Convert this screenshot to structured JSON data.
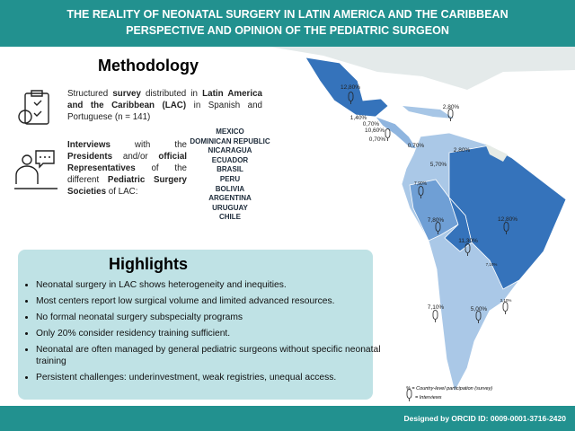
{
  "header": {
    "title_line1": "THE REALITY OF NEONATAL SURGERY IN LATIN AMERICA AND THE CARIBBEAN",
    "title_line2": "PERSPECTIVE AND OPINION OF THE PEDIATRIC SURGEON"
  },
  "methodology": {
    "title": "Methodology",
    "survey": [
      "Structured ",
      "survey",
      " distributed in ",
      "Latin America and the Caribbean (LAC)",
      " in Spanish and Portuguese (n = 141)"
    ],
    "interviews": [
      "Interviews",
      " with the ",
      "Presidents",
      " and/or ",
      "official Representatives",
      " of the different ",
      "Pediatric Surgery Societies",
      " of LAC:"
    ],
    "countries": [
      "MEXICO",
      "DOMINICAN REPUBLIC",
      "NICARAGUA",
      "ECUADOR",
      "BRASIL",
      "PERU",
      "BOLIVIA",
      "ARGENTINA",
      "URUGUAY",
      "CHILE"
    ]
  },
  "highlights": {
    "title": "Highlights",
    "items": [
      "Neonatal surgery in LAC shows heterogeneity and inequities.",
      "Most centers report low surgical volume and limited advanced resources.",
      "No formal neonatal surgery subspecialty programs",
      "Only 20% consider residency training sufficient.",
      "Neonatal are often managed by general pediatric surgeons without specific neonatal training",
      "Persistent challenges: underinvestment, weak registries, unequal access."
    ]
  },
  "map": {
    "labels": [
      "12,80%",
      "2,80%",
      "1,40%",
      "0,70%",
      "10,60%",
      "0,70%",
      "0,70%",
      "2,80%",
      "5,70%",
      "7,90%",
      "7,80%",
      "12,80%",
      "11,30%",
      "7,10%",
      "3,10%",
      "7,10%",
      "5,00%"
    ],
    "legend": [
      "% = Country-level participation (survey)",
      "= Interviews"
    ]
  },
  "footer": {
    "credit": "Designed by ORCID ID: 0009-0001-3716-2420"
  }
}
